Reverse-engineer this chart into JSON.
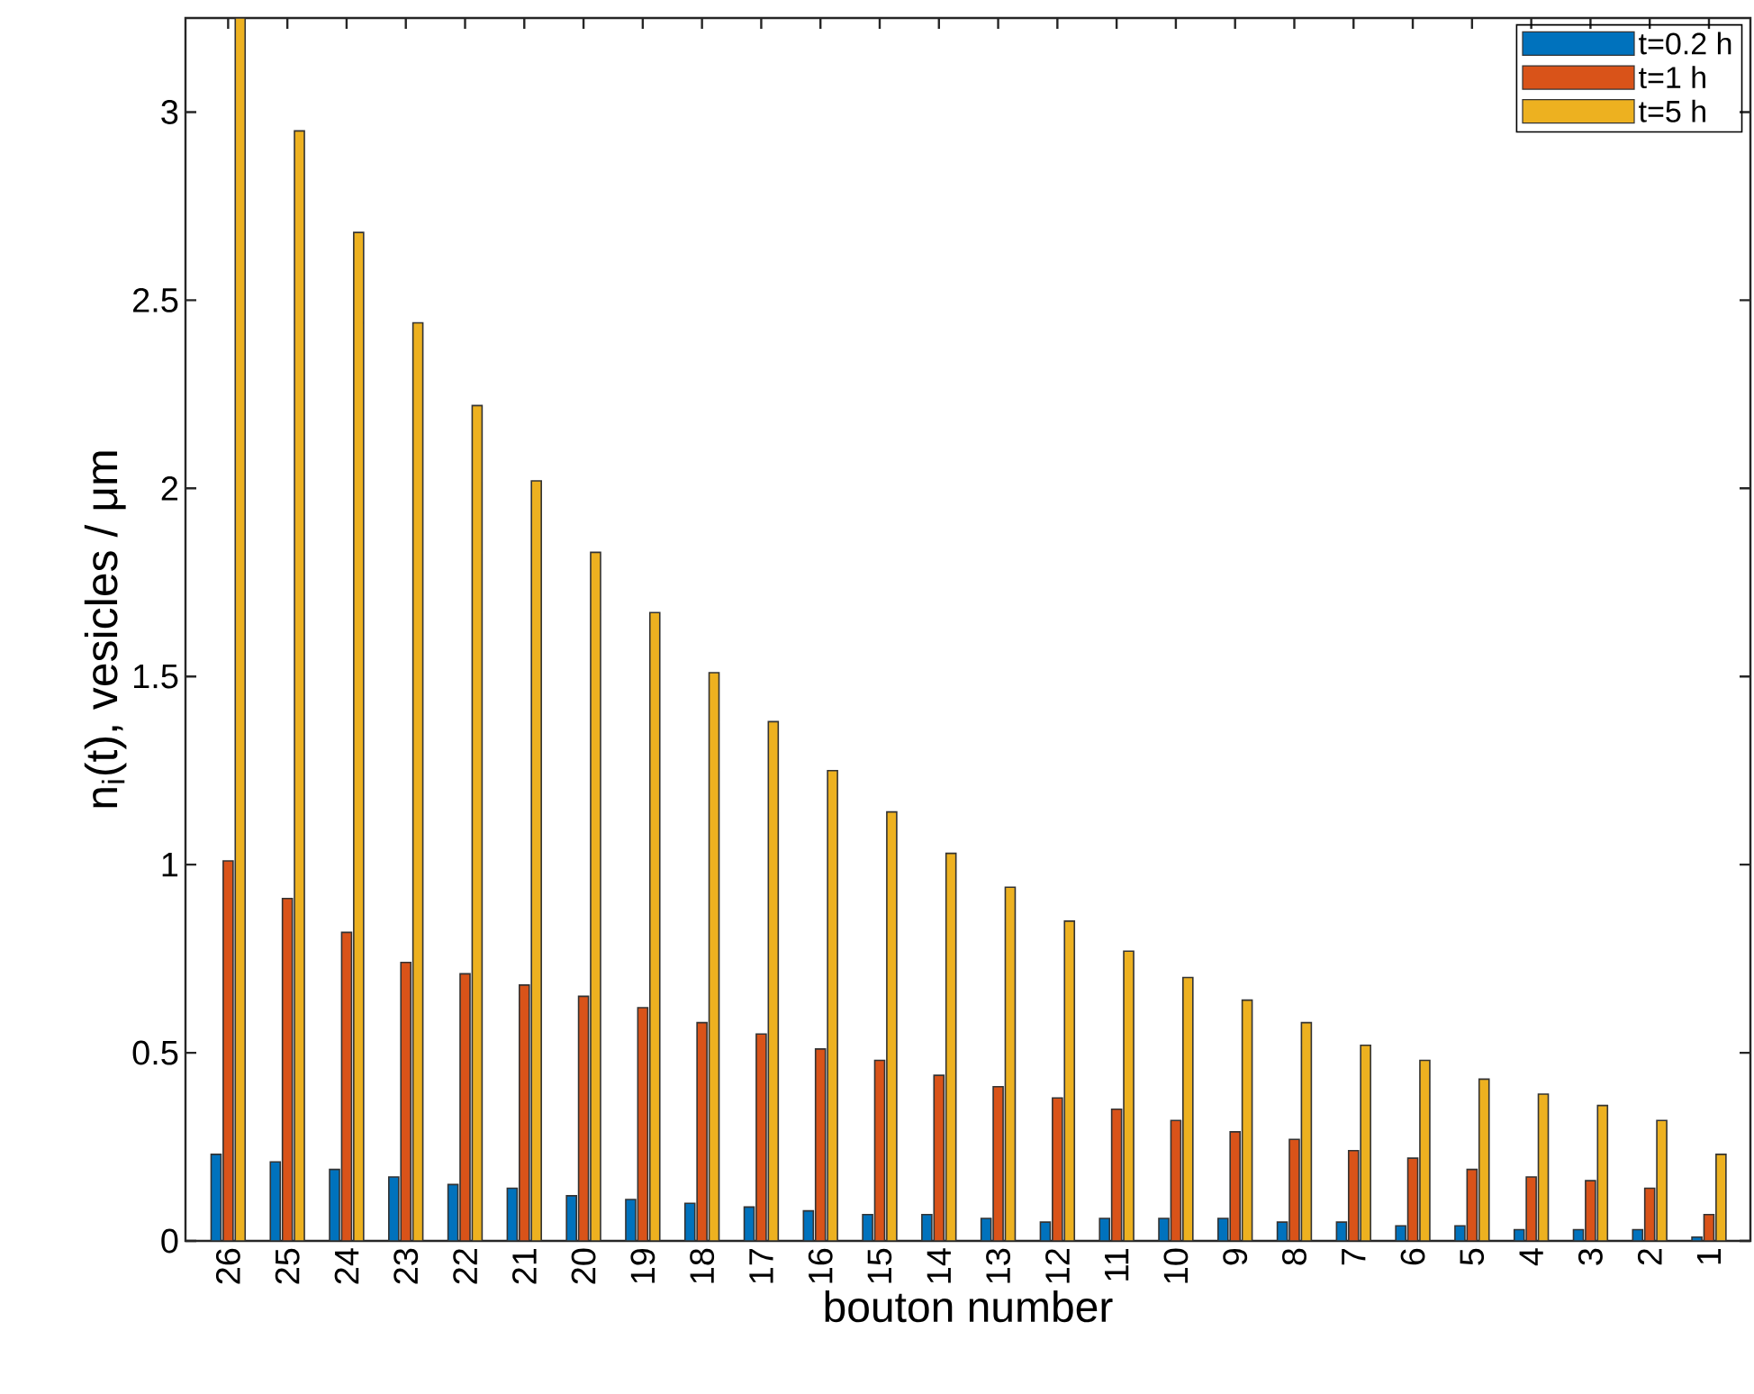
{
  "chart_data": {
    "type": "bar",
    "xlabel": "bouton number",
    "ylabel": "n$_{i}$(t),  vesicles / μm",
    "categories": [
      "26",
      "25",
      "24",
      "23",
      "22",
      "21",
      "20",
      "19",
      "18",
      "17",
      "16",
      "15",
      "14",
      "13",
      "12",
      "11",
      "10",
      "9",
      "8",
      "7",
      "6",
      "5",
      "4",
      "3",
      "2",
      "1"
    ],
    "series": [
      {
        "name": "t=0.2 h",
        "color": "#0072bd",
        "values": [
          0.23,
          0.21,
          0.19,
          0.17,
          0.15,
          0.14,
          0.12,
          0.11,
          0.1,
          0.09,
          0.08,
          0.07,
          0.07,
          0.06,
          0.05,
          0.06,
          0.06,
          0.06,
          0.05,
          0.05,
          0.04,
          0.04,
          0.03,
          0.03,
          0.03,
          0.01
        ]
      },
      {
        "name": "t=1 h",
        "color": "#d95319",
        "values": [
          1.01,
          0.91,
          0.82,
          0.74,
          0.71,
          0.68,
          0.65,
          0.62,
          0.58,
          0.55,
          0.51,
          0.48,
          0.44,
          0.41,
          0.38,
          0.35,
          0.32,
          0.29,
          0.27,
          0.24,
          0.22,
          0.19,
          0.17,
          0.16,
          0.14,
          0.07
        ]
      },
      {
        "name": "t=5 h",
        "color": "#edb120",
        "values": [
          3.25,
          2.95,
          2.68,
          2.44,
          2.22,
          2.02,
          1.83,
          1.67,
          1.51,
          1.38,
          1.25,
          1.14,
          1.03,
          0.94,
          0.85,
          0.77,
          0.7,
          0.64,
          0.58,
          0.52,
          0.48,
          0.43,
          0.39,
          0.36,
          0.32,
          0.23
        ]
      }
    ],
    "ylim": [
      0,
      3.25
    ],
    "yticks": [
      0,
      0.5,
      1,
      1.5,
      2,
      2.5,
      3
    ],
    "legend": "top right"
  }
}
